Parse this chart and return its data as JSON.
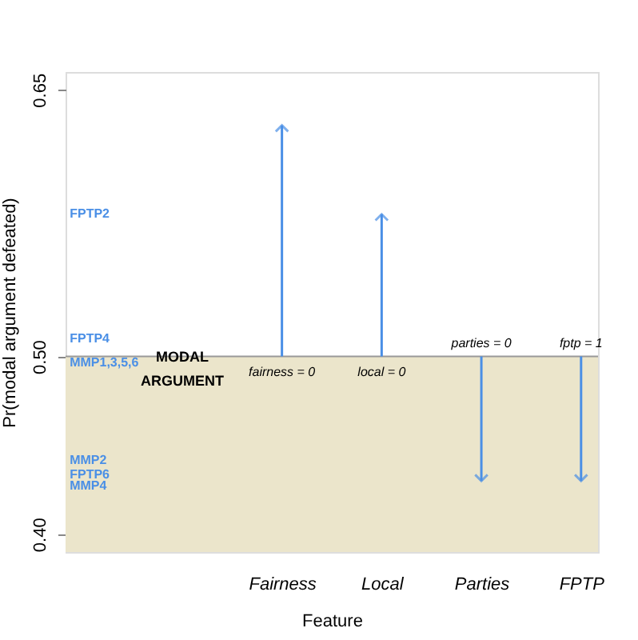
{
  "chart_data": {
    "type": "bar",
    "xlabel": "Feature",
    "ylabel": "Pr(modal argument defeated)",
    "categories": [
      null,
      null,
      "Fairness",
      "Local",
      "Parties",
      "FPTP"
    ],
    "base": [
      null,
      null,
      0.5,
      0.5,
      0.5,
      0.5
    ],
    "values": [
      null,
      null,
      0.13,
      0.08,
      -0.07,
      -0.07
    ],
    "color": "#4a8fe6",
    "ylim": [
      0.39,
      0.66
    ],
    "yticks": [
      {
        "value": 0.4,
        "label": "0.40"
      },
      {
        "value": 0.5,
        "label": "0.50"
      },
      {
        "value": 0.65,
        "label": "0.65"
      }
    ],
    "bands": [
      {
        "axis": "y",
        "from": 0.39,
        "to": 0.5,
        "color": "#ebe5cb"
      }
    ],
    "ref_lines": [
      {
        "axis": "y",
        "value": 0.5,
        "color": "#999999"
      }
    ],
    "annotations": [
      "MODAL ARGUMENT",
      "FPTP2",
      "FPTP4",
      "MMP1,3,5,6",
      "MMP2",
      "FPTP6",
      "MMP4",
      {
        "text": "fairness = 0",
        "x": "Fairness",
        "y": 0.5
      },
      {
        "text": "local = 0",
        "x": "Local",
        "y": 0.5
      },
      {
        "text": "parties = 0",
        "x": "Parties",
        "y": 0.5
      },
      {
        "text": "fptp = 1",
        "x": "FPTP",
        "y": 0.5
      }
    ],
    "grid": false
  }
}
